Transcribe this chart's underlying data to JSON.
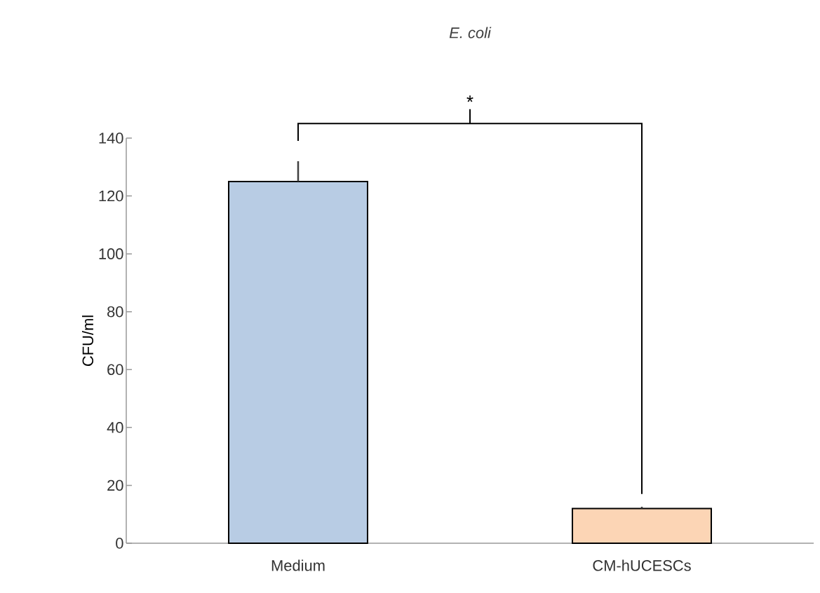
{
  "chart_data": {
    "type": "bar",
    "title": "E. coli",
    "ylabel": "CFU/ml",
    "categories": [
      "Medium",
      "CM-hUCESCs"
    ],
    "values": [
      125,
      12
    ],
    "colors": [
      "#b8cce4",
      "#fcd5b5"
    ],
    "errors": [
      [
        125,
        132
      ],
      [
        12,
        12.6
      ]
    ],
    "ylim": [
      0,
      140
    ],
    "yticks": [
      0,
      20,
      40,
      60,
      80,
      100,
      120,
      140
    ],
    "grid": false,
    "annotations": [
      "*"
    ]
  }
}
